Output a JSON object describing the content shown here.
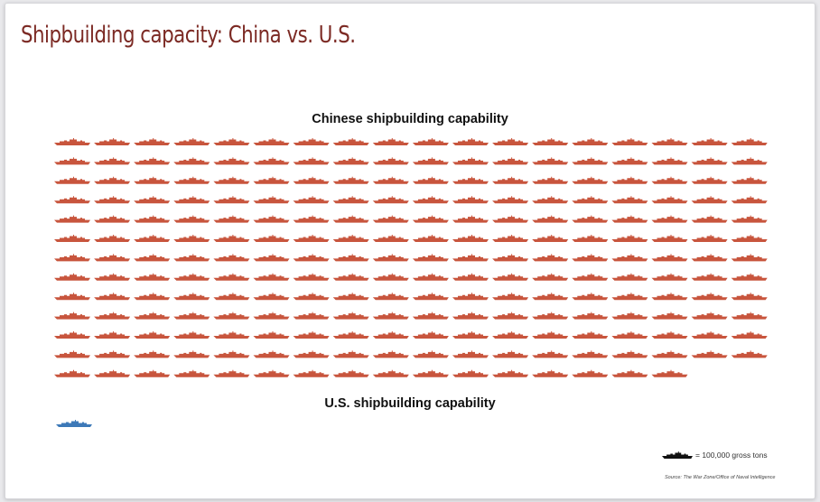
{
  "title": "Shipbuilding capacity: China vs. U.S.",
  "colors": {
    "title": "#7c2a24",
    "china": "#c8553d",
    "us": "#3d79b8",
    "legend_icon": "#111111"
  },
  "legend": {
    "icon": "ship-icon",
    "text": "= 100,000 gross tons"
  },
  "source": "Source: The War Zone/Office of Naval Intelligence",
  "chart_data": [
    {
      "type": "pictograph",
      "title": "Chinese shipbuilding capability",
      "unit": "100,000 gross tons",
      "icons_per_row": 18,
      "value": 232,
      "icon": "ship-icon",
      "color": "#c8553d"
    },
    {
      "type": "pictograph",
      "title": "U.S. shipbuilding capability",
      "unit": "100,000 gross tons",
      "value": 1,
      "icon": "ship-icon",
      "color": "#3d79b8"
    }
  ]
}
